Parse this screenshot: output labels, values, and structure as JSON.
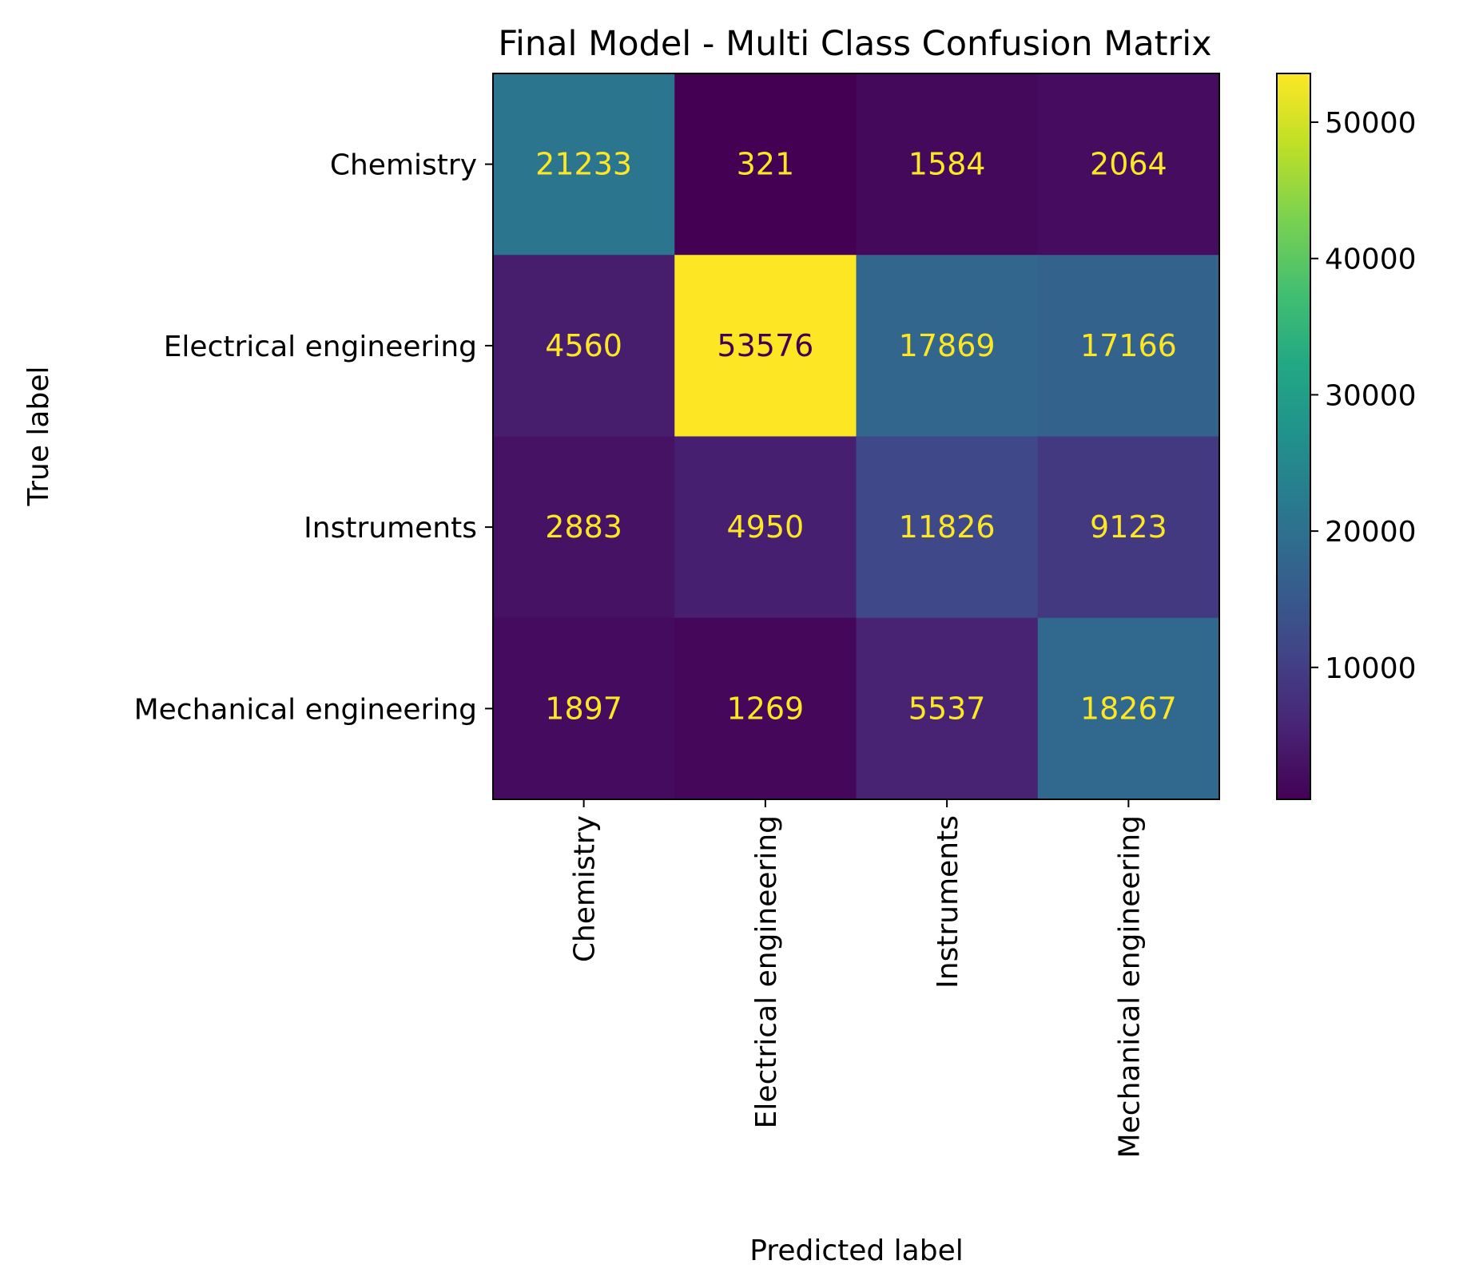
{
  "chart_data": {
    "type": "heatmap",
    "title": "Final Model - Multi Class Confusion Matrix",
    "xlabel": "Predicted label",
    "ylabel": "True label",
    "x_categories": [
      "Chemistry",
      "Electrical engineering",
      "Instruments",
      "Mechanical engineering"
    ],
    "y_categories": [
      "Chemistry",
      "Electrical engineering",
      "Instruments",
      "Mechanical engineering"
    ],
    "values": [
      [
        21233,
        321,
        1584,
        2064
      ],
      [
        4560,
        53576,
        17869,
        17166
      ],
      [
        2883,
        4950,
        11826,
        9123
      ],
      [
        1897,
        1269,
        5537,
        18267
      ]
    ],
    "colormap": "viridis",
    "colorbar": {
      "range": [
        321,
        53576
      ],
      "ticks": [
        10000,
        20000,
        30000,
        40000,
        50000
      ],
      "tick_labels": [
        "10000",
        "20000",
        "30000",
        "40000",
        "50000"
      ]
    },
    "annotation_colors": {
      "on_dark": "#fde725",
      "on_light": "#440154"
    }
  }
}
